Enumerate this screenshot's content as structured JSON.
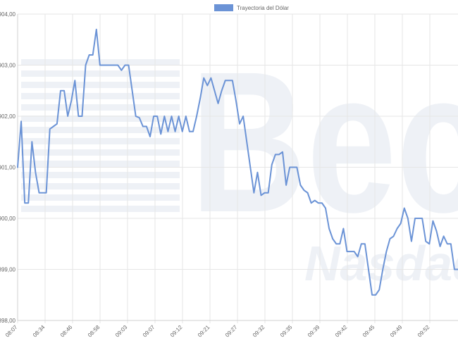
{
  "chart_data": {
    "type": "line",
    "title": "",
    "xlabel": "",
    "ylabel": "",
    "legend": {
      "position": "top-center",
      "entries": [
        "Trayectoria del Dólar"
      ]
    },
    "grid": true,
    "ylim": [
      898.0,
      904.0
    ],
    "y_ticks": [
      898.0,
      899.0,
      900.0,
      901.0,
      902.0,
      903.0,
      904.0
    ],
    "y_tick_labels": [
      "898,00",
      "899,00",
      "900,00",
      "901,00",
      "902,00",
      "903,00",
      "904,00"
    ],
    "x_tick_labels": [
      "08:07",
      "08:34",
      "08:46",
      "08:58",
      "09:03",
      "09:07",
      "09:12",
      "09:21",
      "09:27",
      "09:32",
      "09:35",
      "09:39",
      "09:42",
      "09:45",
      "09:49",
      "09:52"
    ],
    "colors": {
      "line": "#6b93d6",
      "legend_box": "#6b93d6",
      "grid": "#e6e6e6",
      "watermark": "#eef1f6"
    },
    "series": [
      {
        "name": "Trayectoria del Dólar",
        "values": [
          901.0,
          901.9,
          900.3,
          900.3,
          901.5,
          900.9,
          900.5,
          900.5,
          900.5,
          901.75,
          901.8,
          901.85,
          902.5,
          902.5,
          902.0,
          902.3,
          902.7,
          902.0,
          902.0,
          903.0,
          903.2,
          903.2,
          903.7,
          903.0,
          903.0,
          903.0,
          903.0,
          903.0,
          903.0,
          902.9,
          903.0,
          903.0,
          902.5,
          902.0,
          901.97,
          901.8,
          901.8,
          901.6,
          902.0,
          902.0,
          901.65,
          902.0,
          901.7,
          902.0,
          901.7,
          902.0,
          901.7,
          902.0,
          901.7,
          901.7,
          902.0,
          902.35,
          902.75,
          902.6,
          902.75,
          902.5,
          902.25,
          902.5,
          902.7,
          902.7,
          902.7,
          902.3,
          901.85,
          902.0,
          901.5,
          901.0,
          900.5,
          900.9,
          900.45,
          900.5,
          900.5,
          901.05,
          901.25,
          901.25,
          901.3,
          900.65,
          901.0,
          901.0,
          901.0,
          900.65,
          900.55,
          900.5,
          900.3,
          900.35,
          900.3,
          900.3,
          900.2,
          899.8,
          899.6,
          899.5,
          899.5,
          899.8,
          899.35,
          899.35,
          899.35,
          899.25,
          899.5,
          899.5,
          899.0,
          898.5,
          898.5,
          898.6,
          899.0,
          899.35,
          899.6,
          899.65,
          899.8,
          899.9,
          900.2,
          900.0,
          899.55,
          900.0,
          900.0,
          900.0,
          899.55,
          899.5,
          899.95,
          899.75,
          899.45,
          899.65,
          899.5,
          899.5,
          899.0,
          899.0
        ]
      }
    ]
  },
  "watermark": {
    "text": "Bec",
    "subtext": "Nasdaq"
  }
}
